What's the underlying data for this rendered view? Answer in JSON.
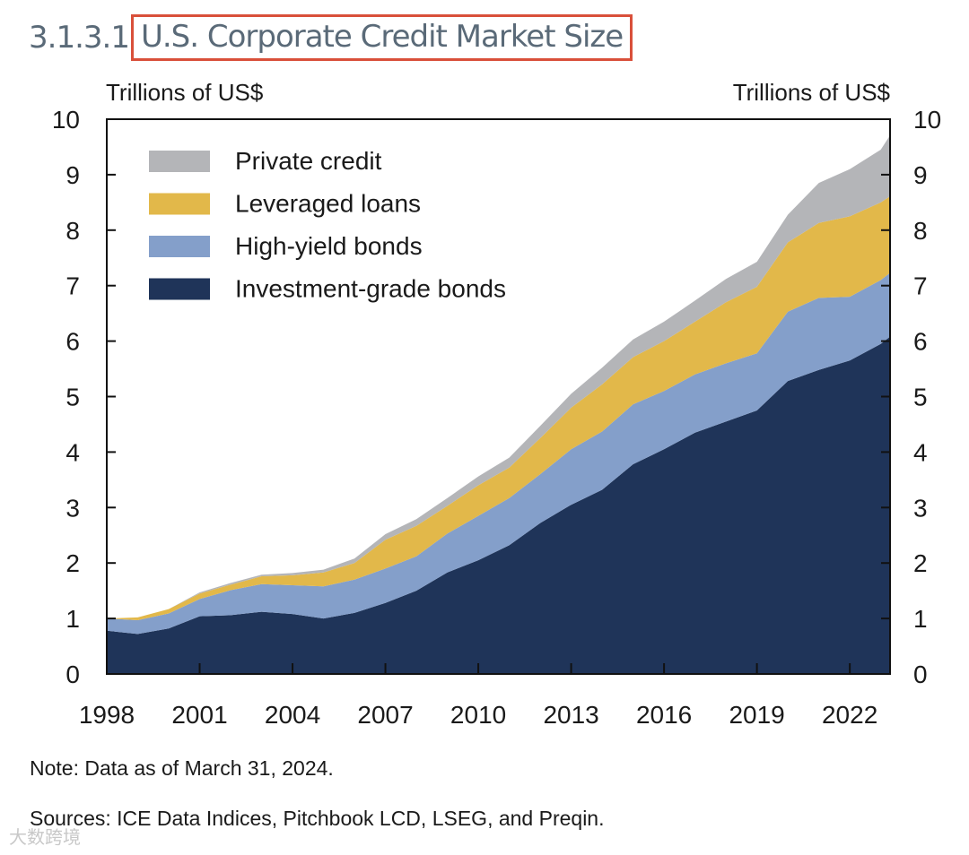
{
  "figure_number": "3.1.3.1",
  "title": "U.S. Corporate Credit Market Size",
  "note": "Note: Data as of March 31, 2024.",
  "sources": "Sources: ICE Data Indices, Pitchbook LCD, LSEG, and Preqin.",
  "watermark": "大数跨境",
  "chart_data": {
    "type": "area",
    "stacked": true,
    "ylabel_left": "Trillions of US$",
    "ylabel_right": "Trillions of US$",
    "ylim": [
      0,
      10
    ],
    "yticks": [
      0,
      1,
      2,
      3,
      4,
      5,
      6,
      7,
      8,
      9,
      10
    ],
    "xlim": [
      1998,
      2023.3
    ],
    "xticks": [
      1998,
      2001,
      2004,
      2007,
      2010,
      2013,
      2016,
      2019,
      2022
    ],
    "grid": false,
    "legend_position": "top-left",
    "x": [
      1998,
      1999,
      2000,
      2001,
      2002,
      2003,
      2004,
      2005,
      2006,
      2007,
      2008,
      2009,
      2010,
      2011,
      2012,
      2013,
      2014,
      2015,
      2016,
      2017,
      2018,
      2019,
      2020,
      2021,
      2022,
      2023,
      2023.3
    ],
    "series": [
      {
        "name": "Investment-grade bonds",
        "color": "#1f3459",
        "values": [
          0.78,
          0.72,
          0.82,
          1.04,
          1.06,
          1.12,
          1.08,
          1.0,
          1.1,
          1.28,
          1.5,
          1.83,
          2.05,
          2.32,
          2.72,
          3.05,
          3.32,
          3.78,
          4.05,
          4.35,
          4.55,
          4.75,
          5.28,
          5.48,
          5.65,
          5.95,
          6.08
        ]
      },
      {
        "name": "High-yield bonds",
        "color": "#849fca",
        "values": [
          0.22,
          0.25,
          0.27,
          0.31,
          0.45,
          0.5,
          0.52,
          0.58,
          0.6,
          0.62,
          0.62,
          0.7,
          0.8,
          0.85,
          0.88,
          1.0,
          1.05,
          1.08,
          1.05,
          1.05,
          1.05,
          1.03,
          1.25,
          1.3,
          1.15,
          1.15,
          1.15
        ]
      },
      {
        "name": "Leveraged loans",
        "color": "#e2b84a",
        "values": [
          0,
          0.05,
          0.08,
          0.1,
          0.1,
          0.14,
          0.18,
          0.25,
          0.3,
          0.52,
          0.55,
          0.5,
          0.55,
          0.55,
          0.65,
          0.75,
          0.85,
          0.85,
          0.9,
          0.95,
          1.1,
          1.2,
          1.25,
          1.35,
          1.45,
          1.4,
          1.38
        ]
      },
      {
        "name": "Private credit",
        "color": "#b4b5b8",
        "values": [
          0,
          0,
          0,
          0.02,
          0.03,
          0.03,
          0.04,
          0.05,
          0.08,
          0.1,
          0.12,
          0.14,
          0.16,
          0.18,
          0.22,
          0.25,
          0.3,
          0.32,
          0.35,
          0.38,
          0.42,
          0.45,
          0.5,
          0.72,
          0.85,
          0.95,
          1.1
        ]
      }
    ]
  }
}
